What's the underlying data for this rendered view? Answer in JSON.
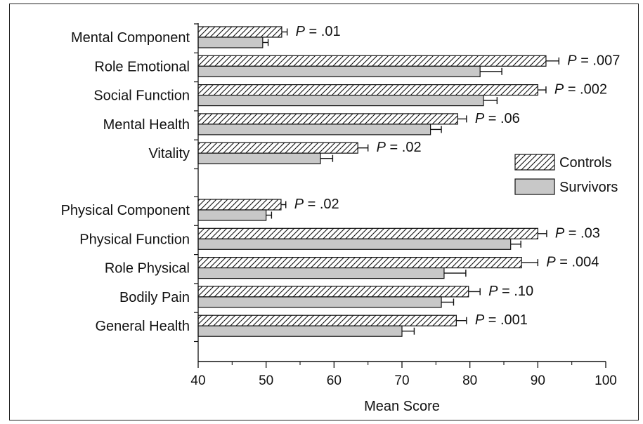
{
  "chart_data": {
    "type": "bar",
    "orientation": "horizontal",
    "xlabel": "Mean Score",
    "xlim": [
      40,
      100
    ],
    "xticks": [
      "40",
      "50",
      "60",
      "70",
      "80",
      "90",
      "100"
    ],
    "series": [
      {
        "name": "Controls",
        "pattern": "hatched",
        "color": "#ffffff"
      },
      {
        "name": "Survivors",
        "pattern": "solid",
        "color": "#c8c8c8"
      }
    ],
    "groups": [
      {
        "items": [
          {
            "label": "Mental Component",
            "controls": 52.3,
            "controls_err": 0.8,
            "survivors": 49.5,
            "survivors_err": 0.8,
            "p": "P = .01"
          },
          {
            "label": "Role Emotional",
            "controls": 91.2,
            "controls_err": 1.9,
            "survivors": 81.5,
            "survivors_err": 3.2,
            "p": "P = .007"
          },
          {
            "label": "Social Function",
            "controls": 90.0,
            "controls_err": 1.2,
            "survivors": 82.0,
            "survivors_err": 2.0,
            "p": "P = .002"
          },
          {
            "label": "Mental Health",
            "controls": 78.2,
            "controls_err": 1.3,
            "survivors": 74.2,
            "survivors_err": 1.6,
            "p": "P = .06"
          },
          {
            "label": "Vitality",
            "controls": 63.5,
            "controls_err": 1.5,
            "survivors": 58.0,
            "survivors_err": 1.8,
            "p": "P = .02"
          }
        ]
      },
      {
        "items": [
          {
            "label": "Physical Component",
            "controls": 52.2,
            "controls_err": 0.7,
            "survivors": 50.0,
            "survivors_err": 0.8,
            "p": "P = .02"
          },
          {
            "label": "Physical Function",
            "controls": 90.0,
            "controls_err": 1.3,
            "survivors": 86.0,
            "survivors_err": 1.5,
            "p": "P = .03"
          },
          {
            "label": "Role Physical",
            "controls": 87.6,
            "controls_err": 2.4,
            "survivors": 76.2,
            "survivors_err": 3.2,
            "p": "P = .004"
          },
          {
            "label": "Bodily Pain",
            "controls": 79.8,
            "controls_err": 1.7,
            "survivors": 75.8,
            "survivors_err": 1.8,
            "p": "P = .10"
          },
          {
            "label": "General Health",
            "controls": 78.0,
            "controls_err": 1.5,
            "survivors": 70.0,
            "survivors_err": 1.8,
            "p": "P = .001"
          }
        ]
      }
    ],
    "legend": {
      "position": "right",
      "entries": [
        "Controls",
        "Survivors"
      ]
    }
  }
}
